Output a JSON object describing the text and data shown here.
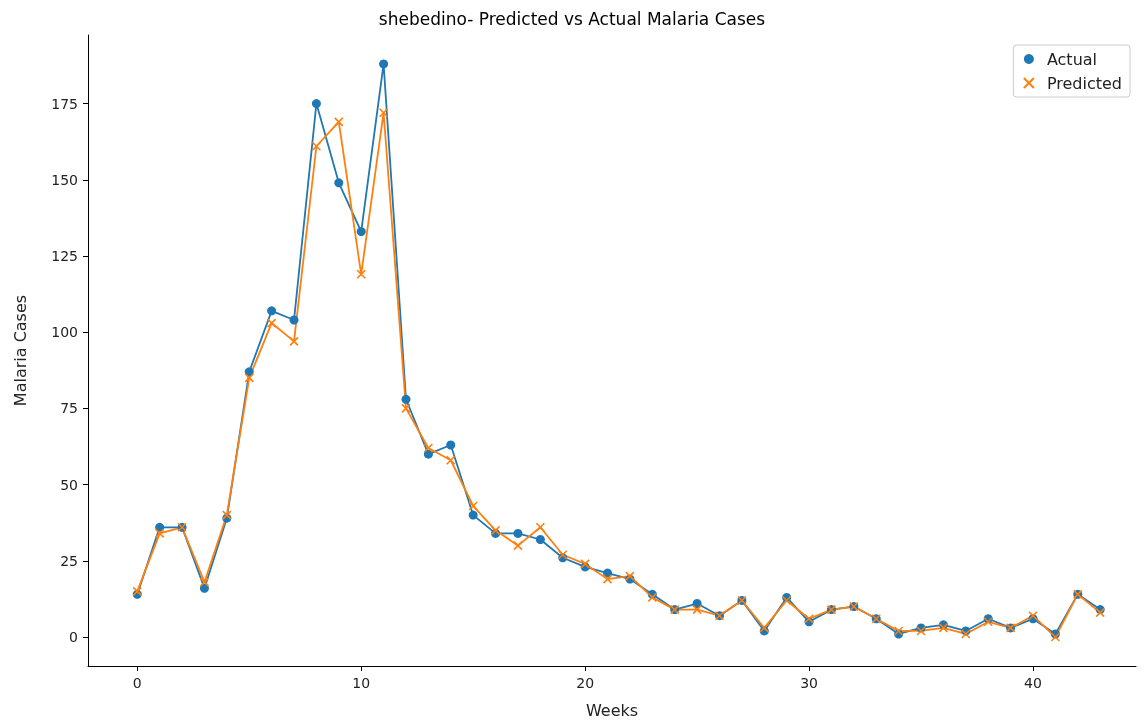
{
  "chart_data": {
    "type": "line",
    "title": "shebedino- Predicted vs Actual Malaria Cases",
    "xlabel": "Weeks",
    "ylabel": "Malaria Cases",
    "x": [
      0,
      1,
      2,
      3,
      4,
      5,
      6,
      7,
      8,
      9,
      10,
      11,
      12,
      13,
      14,
      15,
      16,
      17,
      18,
      19,
      20,
      21,
      22,
      23,
      24,
      25,
      26,
      27,
      28,
      29,
      30,
      31,
      32,
      33,
      34,
      35,
      36,
      37,
      38,
      39,
      40,
      41,
      42,
      43
    ],
    "series": [
      {
        "name": "Actual",
        "color": "#1f77b4",
        "marker": "circle",
        "values": [
          14,
          36,
          36,
          16,
          39,
          87,
          107,
          104,
          175,
          149,
          133,
          188,
          78,
          60,
          63,
          40,
          34,
          34,
          32,
          26,
          23,
          21,
          19,
          14,
          9,
          11,
          7,
          12,
          2,
          13,
          5,
          9,
          10,
          6,
          1,
          3,
          4,
          2,
          6,
          3,
          6,
          1,
          14,
          9
        ]
      },
      {
        "name": "Predicted",
        "color": "#ff7f0e",
        "marker": "cross",
        "values": [
          15,
          34,
          36,
          18,
          40,
          85,
          103,
          97,
          161,
          169,
          119,
          172,
          75,
          62,
          58,
          43,
          35,
          30,
          36,
          27,
          24,
          19,
          20,
          13,
          9,
          9,
          7,
          12,
          3,
          12,
          6,
          9,
          10,
          6,
          2,
          2,
          3,
          1,
          5,
          3,
          7,
          0,
          14,
          8
        ]
      }
    ],
    "xlim": [
      -2.2,
      44.6
    ],
    "xticks": [
      0,
      10,
      20,
      30,
      40
    ],
    "ylim": [
      -9.5,
      197.5
    ],
    "yticks": [
      0,
      25,
      50,
      75,
      100,
      125,
      150,
      175
    ],
    "grid": false,
    "legend": "top right",
    "line_style": "solid"
  }
}
